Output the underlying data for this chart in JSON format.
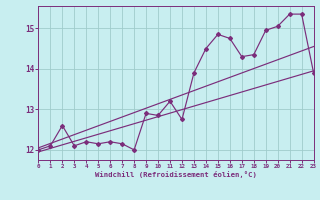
{
  "xlabel": "Windchill (Refroidissement éolien,°C)",
  "bg_color": "#c8eef0",
  "line_color": "#7b2d7b",
  "grid_color": "#a0cccc",
  "xlim": [
    0,
    23
  ],
  "ylim": [
    11.75,
    15.55
  ],
  "yticks": [
    12,
    13,
    14,
    15
  ],
  "xticks": [
    0,
    1,
    2,
    3,
    4,
    5,
    6,
    7,
    8,
    9,
    10,
    11,
    12,
    13,
    14,
    15,
    16,
    17,
    18,
    19,
    20,
    21,
    22,
    23
  ],
  "data_x": [
    0,
    1,
    2,
    3,
    4,
    5,
    6,
    7,
    8,
    9,
    10,
    11,
    12,
    13,
    14,
    15,
    16,
    17,
    18,
    19,
    20,
    21,
    22,
    23
  ],
  "data_y": [
    12.0,
    12.1,
    12.6,
    12.1,
    12.2,
    12.15,
    12.2,
    12.15,
    12.0,
    12.9,
    12.85,
    13.2,
    12.75,
    13.9,
    14.5,
    14.85,
    14.75,
    14.3,
    14.35,
    14.95,
    15.05,
    15.35,
    15.35,
    13.9
  ],
  "trend1_x": [
    0,
    23
  ],
  "trend1_y": [
    11.95,
    13.95
  ],
  "trend2_x": [
    0,
    23
  ],
  "trend2_y": [
    12.05,
    14.55
  ]
}
